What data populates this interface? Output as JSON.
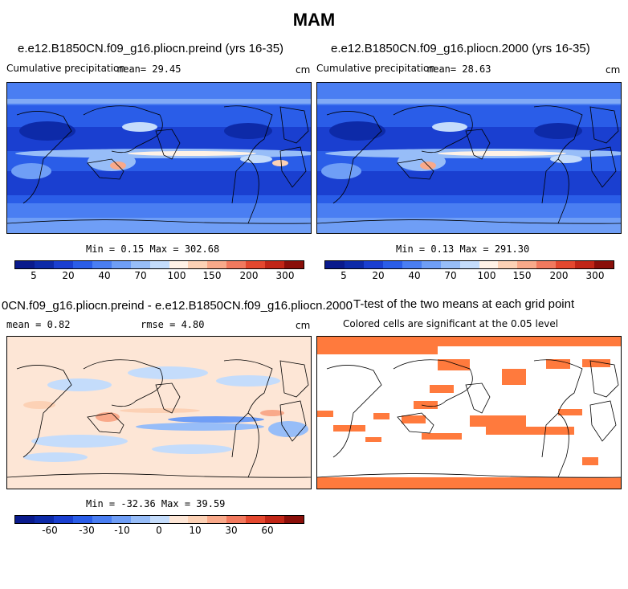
{
  "title": "MAM",
  "colors": {
    "precip_levels": [
      "#0a1a8c",
      "#0d2aa8",
      "#1a3fd0",
      "#2a5de8",
      "#4a7ef2",
      "#6f9ef6",
      "#97bdf8",
      "#c4dcfb",
      "#fff2e6",
      "#fcd1b5",
      "#f9a98a",
      "#f2795e",
      "#e4482f",
      "#c12617",
      "#8a0f0a"
    ],
    "diff_levels": [
      "#0a1a8c",
      "#0d2aa8",
      "#1a3fd0",
      "#2a5de8",
      "#4a7ef2",
      "#6f9ef6",
      "#97bdf8",
      "#c4dcfb",
      "#fde6d6",
      "#fcd1b5",
      "#f9a98a",
      "#f2795e",
      "#e4482f",
      "#c12617",
      "#8a0f0a"
    ],
    "significant": "#ff7a3d"
  },
  "panels": [
    {
      "title": "e.e12.B1850CN.f09_g16.pliocn.preind (yrs 16-35)",
      "subtitle_left": "Cumulative precipitation",
      "stat": "mean=  29.45",
      "units": "cm",
      "minmax": "Min =    0.15  Max = 302.68"
    },
    {
      "title": "e.e12.B1850CN.f09_g16.pliocn.2000 (yrs 16-35)",
      "subtitle_left": "Cumulative precipitation",
      "stat": "mean=  28.63",
      "units": "cm",
      "minmax": "Min =    0.13  Max = 291.30"
    },
    {
      "title": "0CN.f09_g16.pliocn.preind - e.e12.B1850CN.f09_g16.pliocn.2000",
      "stat": "mean =    0.82",
      "stat2": "rmse =    4.80",
      "units": "cm",
      "minmax": "Min = -32.36  Max =  39.59"
    },
    {
      "title": "T-test of the two means at each grid point",
      "subtitle": "Colored cells are significant at the 0.05 level"
    }
  ],
  "chart_data": [
    {
      "type": "heatmap",
      "title": "e.e12.B1850CN.f09_g16.pliocn.preind (yrs 16-35)",
      "variable": "Cumulative precipitation",
      "units": "cm",
      "mean": 29.45,
      "min": 0.15,
      "max": 302.68,
      "colorbar_ticks": [
        "5",
        "20",
        "40",
        "70",
        "100",
        "150",
        "200",
        "300"
      ]
    },
    {
      "type": "heatmap",
      "title": "e.e12.B1850CN.f09_g16.pliocn.2000 (yrs 16-35)",
      "variable": "Cumulative precipitation",
      "units": "cm",
      "mean": 28.63,
      "min": 0.13,
      "max": 291.3,
      "colorbar_ticks": [
        "5",
        "20",
        "40",
        "70",
        "100",
        "150",
        "200",
        "300"
      ]
    },
    {
      "type": "heatmap",
      "title": "0CN.f09_g16.pliocn.preind - e.e12.B1850CN.f09_g16.pliocn.2000",
      "units": "cm",
      "mean": 0.82,
      "rmse": 4.8,
      "min": -32.36,
      "max": 39.59,
      "colorbar_ticks": [
        "-60",
        "-30",
        "-10",
        "0",
        "10",
        "30",
        "60"
      ]
    },
    {
      "type": "heatmap",
      "title": "T-test of the two means at each grid point",
      "note": "Colored cells are significant at the 0.05 level"
    }
  ]
}
